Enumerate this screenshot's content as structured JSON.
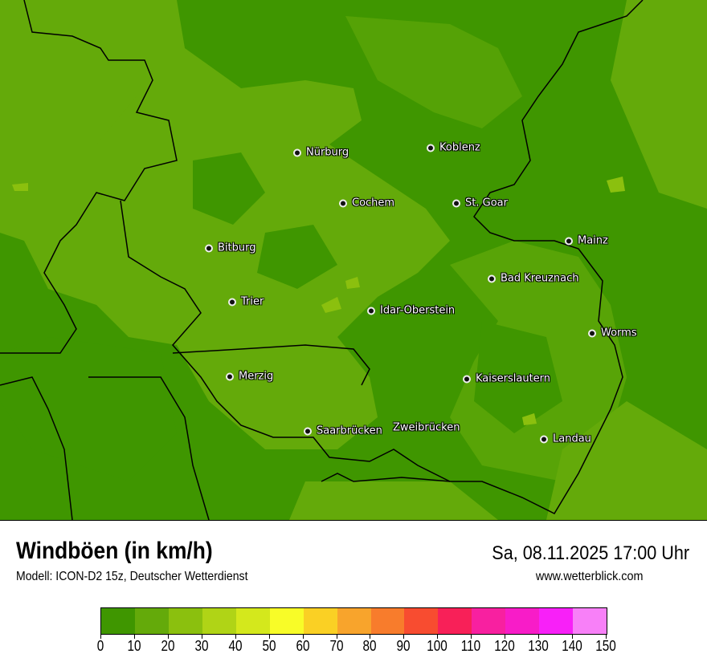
{
  "header": {
    "title": "Windböen (in km/h)",
    "subtitle": "Modell: ICON-D2 15z, Deutscher Wetterdienst",
    "datetime": "Sa, 08.11.2025 17:00 Uhr",
    "website": "www.wetterblick.com"
  },
  "cities": [
    {
      "name": "Nürburg"
    },
    {
      "name": "Koblenz"
    },
    {
      "name": "Cochem"
    },
    {
      "name": "St. Goar"
    },
    {
      "name": "Mainz"
    },
    {
      "name": "Bitburg"
    },
    {
      "name": "Bad Kreuznach"
    },
    {
      "name": "Trier"
    },
    {
      "name": "Idar-Oberstein"
    },
    {
      "name": "Worms"
    },
    {
      "name": "Merzig"
    },
    {
      "name": "Kaiserslautern"
    },
    {
      "name": "Saarbrücken"
    },
    {
      "name": "Zweibrücken"
    },
    {
      "name": "Landau"
    }
  ],
  "legend": {
    "colors": [
      "#3f9600",
      "#64aa0a",
      "#8bc00e",
      "#b0d416",
      "#d4e81c",
      "#f8fc28",
      "#fad024",
      "#f8a42c",
      "#f87c2c",
      "#f84c30",
      "#f82058",
      "#f820a0",
      "#f81cc8",
      "#f820f8",
      "#f880f8"
    ],
    "ticks": [
      "0",
      "10",
      "20",
      "30",
      "40",
      "50",
      "60",
      "70",
      "80",
      "90",
      "100",
      "110",
      "120",
      "130",
      "140",
      "150"
    ]
  }
}
